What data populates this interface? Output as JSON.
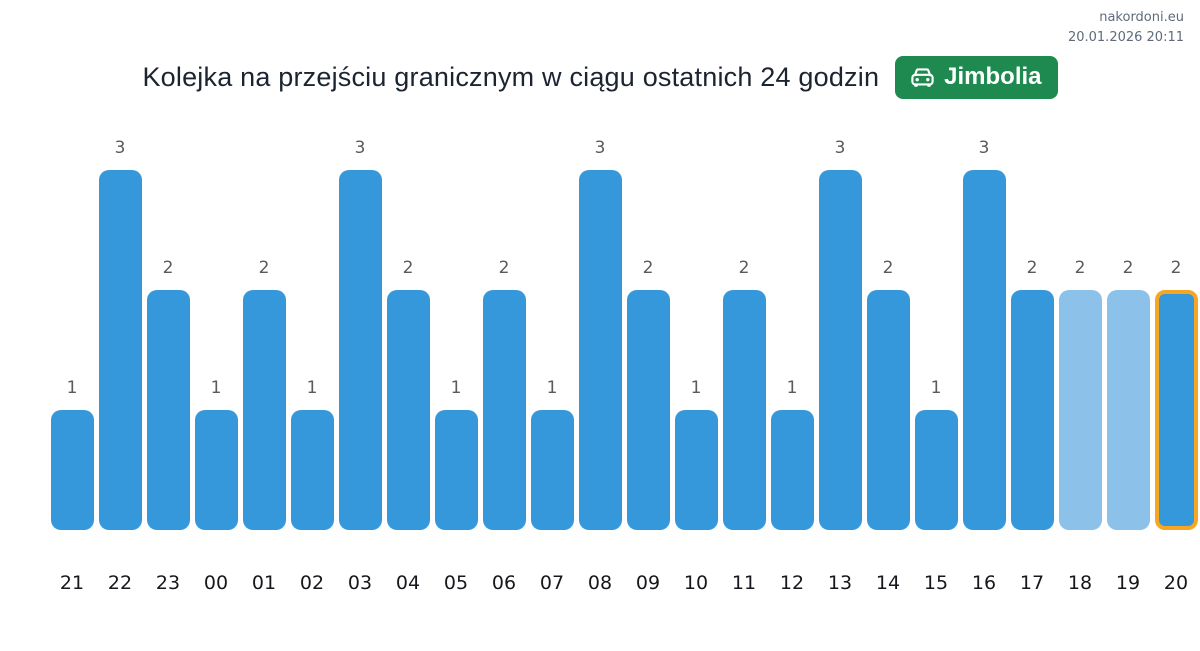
{
  "watermark": {
    "site": "nakordoni.eu",
    "timestamp": "20.01.2026 20:11"
  },
  "header": {
    "title": "Kolejka na przejściu granicznym w ciągu ostatnich 24 godzin",
    "badge": {
      "label": "Jimbolia",
      "icon": "car-front-icon",
      "color": "#1E8A4F"
    }
  },
  "chart_data": {
    "type": "bar",
    "title": "Kolejka na przejściu granicznym w ciągu ostatnich 24 godzin",
    "xlabel": "",
    "ylabel": "",
    "ylim": [
      0,
      3
    ],
    "grid": false,
    "legend": false,
    "categories": [
      "21",
      "22",
      "23",
      "00",
      "01",
      "02",
      "03",
      "04",
      "05",
      "06",
      "07",
      "08",
      "09",
      "10",
      "11",
      "12",
      "13",
      "14",
      "15",
      "16",
      "17",
      "18",
      "19",
      "20"
    ],
    "values": [
      1,
      3,
      2,
      1,
      2,
      1,
      3,
      2,
      1,
      2,
      1,
      3,
      2,
      1,
      2,
      1,
      3,
      2,
      1,
      3,
      2,
      2,
      2,
      2
    ],
    "bar_states": [
      "normal",
      "normal",
      "normal",
      "normal",
      "normal",
      "normal",
      "normal",
      "normal",
      "normal",
      "normal",
      "normal",
      "normal",
      "normal",
      "normal",
      "normal",
      "normal",
      "normal",
      "normal",
      "normal",
      "normal",
      "normal",
      "light",
      "light",
      "highlighted"
    ],
    "colors": {
      "bar": "#3498DB",
      "bar_light": "#8CC2EA",
      "highlight_border": "#F5A623",
      "value_label": "#5a5a5a",
      "axis_label": "#16181d"
    }
  }
}
